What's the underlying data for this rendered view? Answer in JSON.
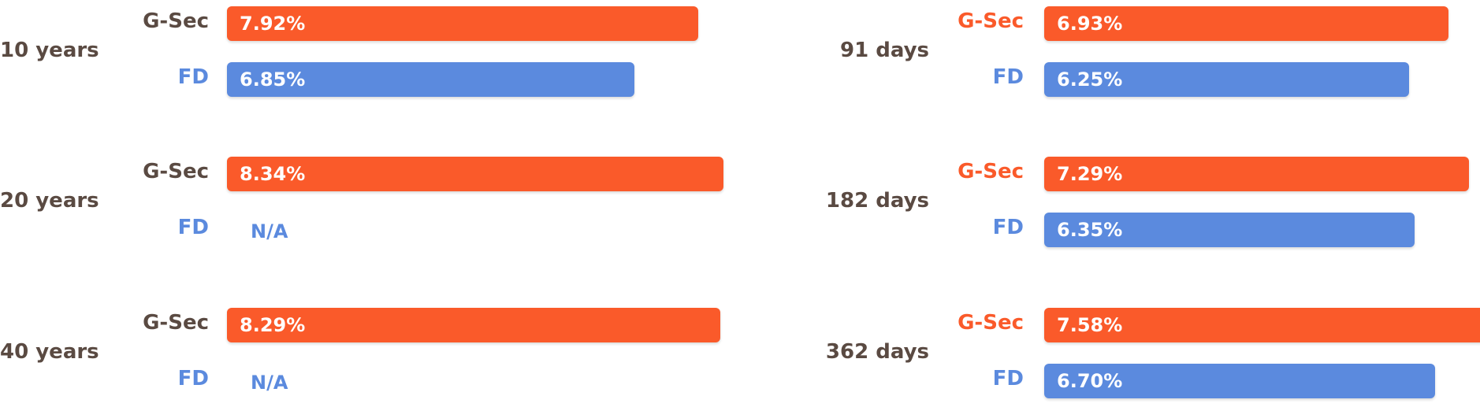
{
  "colors": {
    "gsec": "#fa5a2a",
    "fd": "#5b8ade",
    "period_text": "#5a4a42",
    "gsec_label_left": "#5a4a42",
    "gsec_label_right": "#fa5a2a",
    "fd_label": "#5b8ade"
  },
  "chart_data": [
    {
      "type": "bar",
      "orientation": "horizontal",
      "categories": [
        "10 years",
        "20 years",
        "40 years"
      ],
      "series": [
        {
          "name": "G-Sec",
          "values": [
            7.92,
            8.34,
            8.29
          ],
          "labels": [
            "7.92%",
            "8.34%",
            "8.29%"
          ]
        },
        {
          "name": "FD",
          "values": [
            6.85,
            null,
            null
          ],
          "labels": [
            "6.85%",
            "N/A",
            "N/A"
          ]
        }
      ],
      "xlim": [
        0,
        9
      ]
    },
    {
      "type": "bar",
      "orientation": "horizontal",
      "categories": [
        "91 days",
        "182 days",
        "362 days"
      ],
      "series": [
        {
          "name": "G-Sec",
          "values": [
            6.93,
            7.29,
            7.58
          ],
          "labels": [
            "6.93%",
            "7.29%",
            "7.58%"
          ]
        },
        {
          "name": "FD",
          "values": [
            6.25,
            6.35,
            6.7
          ],
          "labels": [
            "6.25%",
            "6.35%",
            "6.70%"
          ]
        }
      ],
      "xlim": [
        0,
        7.8
      ]
    }
  ]
}
